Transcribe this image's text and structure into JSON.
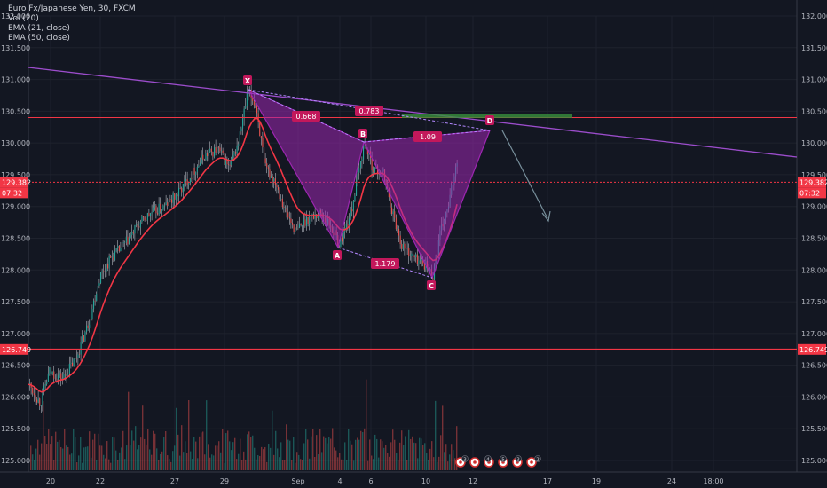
{
  "legend": {
    "symbol": "Euro Fx/Japanese Yen, 30, FXCM",
    "vol": "Vol (20)",
    "ema21": "EMA (21, close)",
    "ema50": "EMA (50, close)"
  },
  "y_axis": {
    "ticks": [
      "132.000",
      "131.500",
      "131.000",
      "130.500",
      "130.000",
      "129.500",
      "129.000",
      "128.500",
      "128.000",
      "127.500",
      "127.000",
      "126.500",
      "126.000",
      "125.500",
      "125.000"
    ],
    "left_ticks": [
      "132.000",
      "131.500",
      "131.000",
      "130.500",
      "130.000",
      "129.500",
      "129.000",
      "128.500",
      "128.000",
      "127.500",
      "127.000",
      "126.500",
      "126.000",
      "125.500",
      "125.000"
    ]
  },
  "x_axis": {
    "ticks": [
      "20",
      "22",
      "27",
      "29",
      "Sep",
      "4",
      "6",
      "10",
      "12",
      "17",
      "19",
      "24",
      "18:00"
    ]
  },
  "price_tags": {
    "current_price": "129.382",
    "countdown": "07:32",
    "support_level": "126.749"
  },
  "pattern": {
    "points": [
      "X",
      "A",
      "B",
      "C",
      "D"
    ],
    "ratios": [
      "0.668",
      "0.783",
      "1.09",
      "1.179"
    ]
  },
  "event_markers": [
    "3",
    "4",
    "5",
    "3",
    "2"
  ],
  "colors": {
    "background": "#131722",
    "pattern_fill": "#9c27b0",
    "pattern_label": "#c2185b",
    "support_line": "#f23645",
    "trend_line": "#9c4dcc",
    "ema21": "#f23645",
    "candles_up": "#26a69a",
    "candles_down": "#ef5350",
    "projection": "#78909c"
  }
}
